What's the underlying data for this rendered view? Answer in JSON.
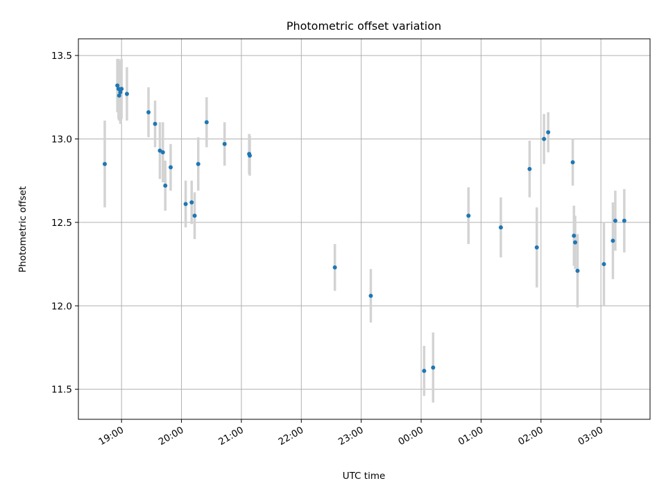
{
  "chart_data": {
    "type": "scatter",
    "title": "Photometric offset variation",
    "xlabel": "UTC time",
    "ylabel": "Photometric offset",
    "x_unit": "UTC time (hours; values >= 24 are past midnight)",
    "xlim": [
      18.28,
      27.82
    ],
    "ylim": [
      11.32,
      13.6
    ],
    "xticks": [
      {
        "value": 19,
        "label": "19:00"
      },
      {
        "value": 20,
        "label": "20:00"
      },
      {
        "value": 21,
        "label": "21:00"
      },
      {
        "value": 22,
        "label": "22:00"
      },
      {
        "value": 23,
        "label": "23:00"
      },
      {
        "value": 24,
        "label": "00:00"
      },
      {
        "value": 25,
        "label": "01:00"
      },
      {
        "value": 26,
        "label": "02:00"
      },
      {
        "value": 27,
        "label": "03:00"
      }
    ],
    "yticks": [
      {
        "value": 11.5,
        "label": "11.5"
      },
      {
        "value": 12.0,
        "label": "12.0"
      },
      {
        "value": 12.5,
        "label": "12.5"
      },
      {
        "value": 13.0,
        "label": "13.0"
      },
      {
        "value": 13.5,
        "label": "13.5"
      }
    ],
    "grid": true,
    "point_color": "#1f77b4",
    "errorbar_color": "#d3d3d3",
    "points": [
      {
        "x": 18.72,
        "y": 12.85,
        "err": 0.26
      },
      {
        "x": 18.93,
        "y": 13.32,
        "err": 0.16
      },
      {
        "x": 18.95,
        "y": 13.3,
        "err": 0.18
      },
      {
        "x": 18.96,
        "y": 13.26,
        "err": 0.15
      },
      {
        "x": 18.98,
        "y": 13.28,
        "err": 0.19
      },
      {
        "x": 19.0,
        "y": 13.3,
        "err": 0.18
      },
      {
        "x": 19.09,
        "y": 13.27,
        "err": 0.16
      },
      {
        "x": 19.45,
        "y": 13.16,
        "err": 0.15
      },
      {
        "x": 19.56,
        "y": 13.09,
        "err": 0.14
      },
      {
        "x": 19.64,
        "y": 12.93,
        "err": 0.17
      },
      {
        "x": 19.69,
        "y": 12.92,
        "err": 0.18
      },
      {
        "x": 19.73,
        "y": 12.72,
        "err": 0.15
      },
      {
        "x": 19.82,
        "y": 12.83,
        "err": 0.14
      },
      {
        "x": 20.07,
        "y": 12.61,
        "err": 0.14
      },
      {
        "x": 20.17,
        "y": 12.62,
        "err": 0.13
      },
      {
        "x": 20.22,
        "y": 12.54,
        "err": 0.14
      },
      {
        "x": 20.28,
        "y": 12.85,
        "err": 0.16
      },
      {
        "x": 20.42,
        "y": 13.1,
        "err": 0.15
      },
      {
        "x": 20.72,
        "y": 12.97,
        "err": 0.13
      },
      {
        "x": 21.13,
        "y": 12.91,
        "err": 0.12
      },
      {
        "x": 21.14,
        "y": 12.9,
        "err": 0.12
      },
      {
        "x": 22.56,
        "y": 12.23,
        "err": 0.14
      },
      {
        "x": 23.16,
        "y": 12.06,
        "err": 0.16
      },
      {
        "x": 24.05,
        "y": 11.61,
        "err": 0.15
      },
      {
        "x": 24.2,
        "y": 11.63,
        "err": 0.21
      },
      {
        "x": 24.79,
        "y": 12.54,
        "err": 0.17
      },
      {
        "x": 25.33,
        "y": 12.47,
        "err": 0.18
      },
      {
        "x": 25.81,
        "y": 12.82,
        "err": 0.17
      },
      {
        "x": 25.93,
        "y": 12.35,
        "err": 0.24
      },
      {
        "x": 26.05,
        "y": 13.0,
        "err": 0.15
      },
      {
        "x": 26.12,
        "y": 13.04,
        "err": 0.12
      },
      {
        "x": 26.53,
        "y": 12.86,
        "err": 0.14
      },
      {
        "x": 26.55,
        "y": 12.42,
        "err": 0.18
      },
      {
        "x": 26.57,
        "y": 12.38,
        "err": 0.16
      },
      {
        "x": 26.61,
        "y": 12.21,
        "err": 0.22
      },
      {
        "x": 27.05,
        "y": 12.25,
        "err": 0.25
      },
      {
        "x": 27.2,
        "y": 12.39,
        "err": 0.23
      },
      {
        "x": 27.24,
        "y": 12.51,
        "err": 0.18
      },
      {
        "x": 27.39,
        "y": 12.51,
        "err": 0.19
      }
    ]
  }
}
